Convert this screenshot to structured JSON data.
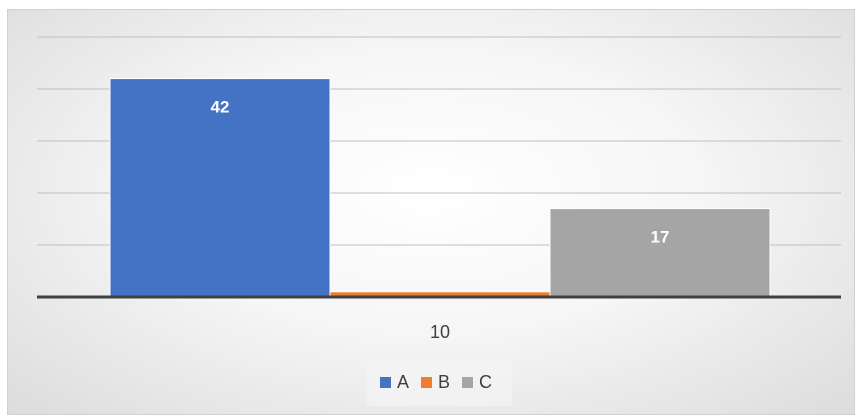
{
  "chart_data": {
    "type": "bar",
    "categories": [
      "10"
    ],
    "series": [
      {
        "name": "A",
        "values": [
          42
        ],
        "color": "#4472C4"
      },
      {
        "name": "B",
        "values": [
          1
        ],
        "color": "#ED7D31"
      },
      {
        "name": "C",
        "values": [
          17
        ],
        "color": "#A5A5A5"
      }
    ],
    "data_labels": [
      "42",
      "",
      "17"
    ],
    "ylim": [
      0,
      50
    ],
    "grid": true,
    "legend_position": "bottom"
  }
}
